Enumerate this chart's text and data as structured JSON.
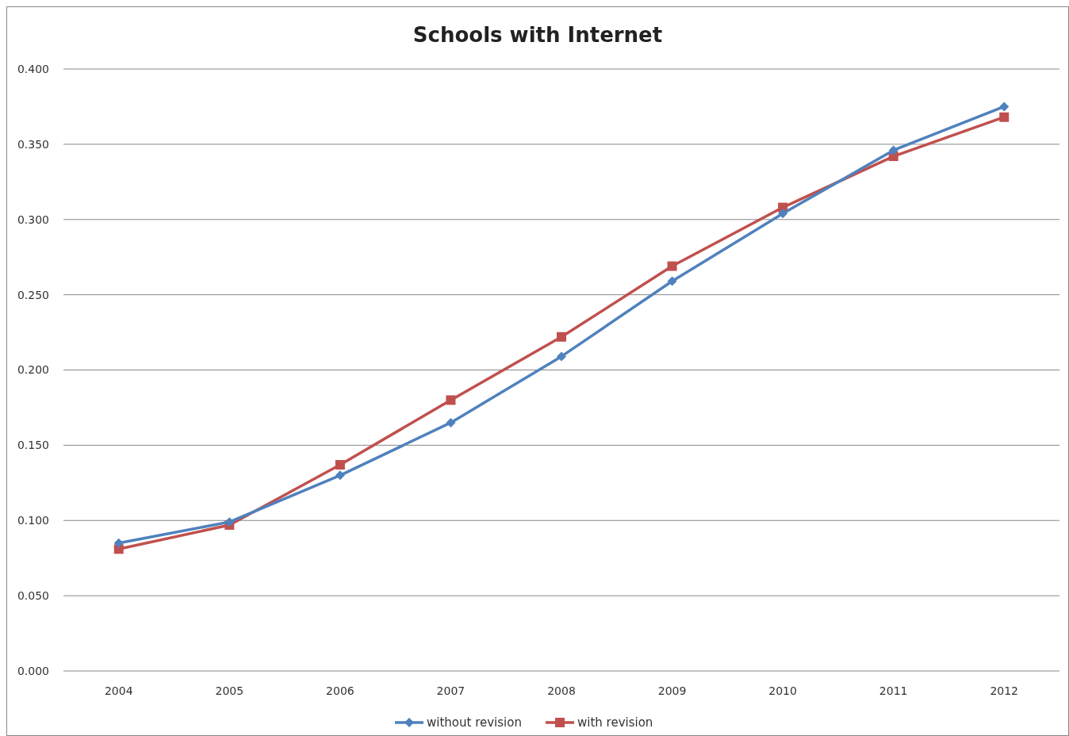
{
  "chart_data": {
    "type": "line",
    "title": "Schools with Internet",
    "categories": [
      "2004",
      "2005",
      "2006",
      "2007",
      "2008",
      "2009",
      "2010",
      "2011",
      "2012"
    ],
    "series": [
      {
        "name": "without revision",
        "color": "#4f81bd",
        "marker": "diamond",
        "values": [
          0.085,
          0.099,
          0.13,
          0.165,
          0.209,
          0.259,
          0.304,
          0.346,
          0.375
        ]
      },
      {
        "name": "with revision",
        "color": "#c0504d",
        "marker": "square",
        "values": [
          0.081,
          0.097,
          0.137,
          0.18,
          0.222,
          0.269,
          0.308,
          0.342,
          0.368
        ]
      }
    ],
    "ylim": [
      0,
      0.4
    ],
    "yticks": [
      {
        "value": 0,
        "label": "0.000"
      },
      {
        "value": 0.05,
        "label": "0.050"
      },
      {
        "value": 0.1,
        "label": "0.100"
      },
      {
        "value": 0.15,
        "label": "0.150"
      },
      {
        "value": 0.2,
        "label": "0.200"
      },
      {
        "value": 0.25,
        "label": "0.250"
      },
      {
        "value": 0.3,
        "label": "0.300"
      },
      {
        "value": 0.35,
        "label": "0.350"
      },
      {
        "value": 0.4,
        "label": "0.400"
      }
    ],
    "grid": "y",
    "legend": "bottom"
  }
}
